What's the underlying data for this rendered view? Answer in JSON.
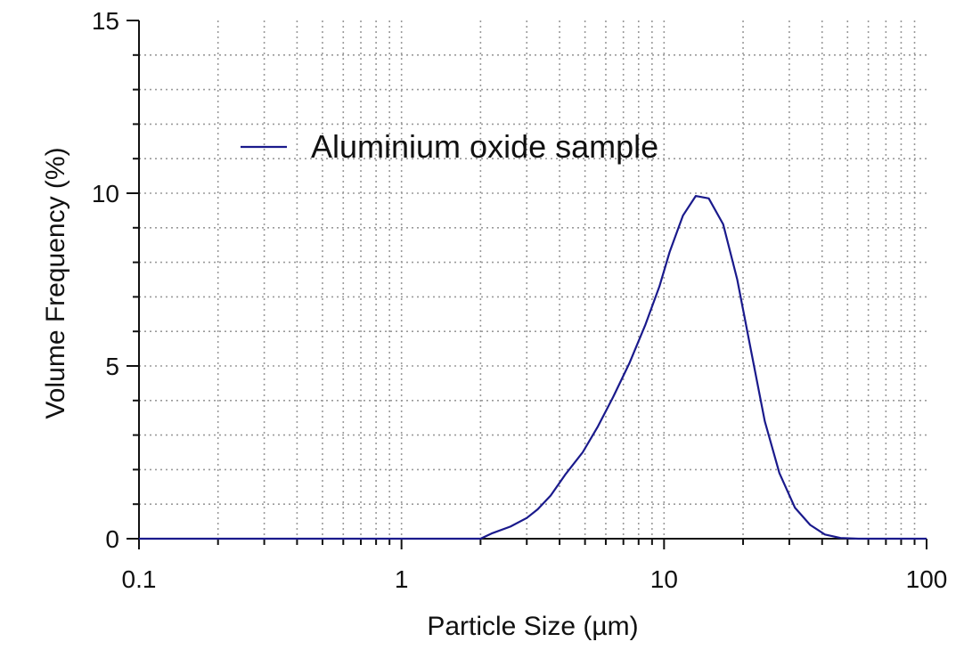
{
  "chart_data": {
    "type": "line",
    "x_scale": "log",
    "xlim": [
      0.1,
      100
    ],
    "ylim": [
      0,
      15
    ],
    "xlabel": "Particle Size (µm)",
    "ylabel": "Volume Frequency (%)",
    "x_ticks": [
      {
        "value": 0.1,
        "label": "0.1"
      },
      {
        "value": 1,
        "label": "1"
      },
      {
        "value": 10,
        "label": "10"
      },
      {
        "value": 100,
        "label": "100"
      }
    ],
    "y_ticks": [
      {
        "value": 0,
        "label": "0"
      },
      {
        "value": 5,
        "label": "5"
      },
      {
        "value": 10,
        "label": "10"
      },
      {
        "value": 15,
        "label": "15"
      }
    ],
    "y_minor_step": 1,
    "grid": true,
    "legend_position": "top-left",
    "series": [
      {
        "name": "Aluminium oxide sample",
        "color": "#1a1a8c",
        "x": [
          0.1,
          1.0,
          2.0,
          2.2,
          2.6,
          3.0,
          3.3,
          3.7,
          4.2,
          4.9,
          5.6,
          6.4,
          7.4,
          8.5,
          9.6,
          10.5,
          11.8,
          13.2,
          14.8,
          16.8,
          19.0,
          21.5,
          24.2,
          27.5,
          31.5,
          36.0,
          41.0,
          47.0,
          55.0,
          70.0,
          100.0
        ],
        "y": [
          0,
          0,
          0,
          0.15,
          0.35,
          0.6,
          0.85,
          1.25,
          1.85,
          2.5,
          3.25,
          4.1,
          5.1,
          6.2,
          7.3,
          8.3,
          9.35,
          9.92,
          9.85,
          9.1,
          7.5,
          5.4,
          3.4,
          1.9,
          0.9,
          0.4,
          0.12,
          0.02,
          0,
          0,
          0
        ]
      }
    ]
  }
}
